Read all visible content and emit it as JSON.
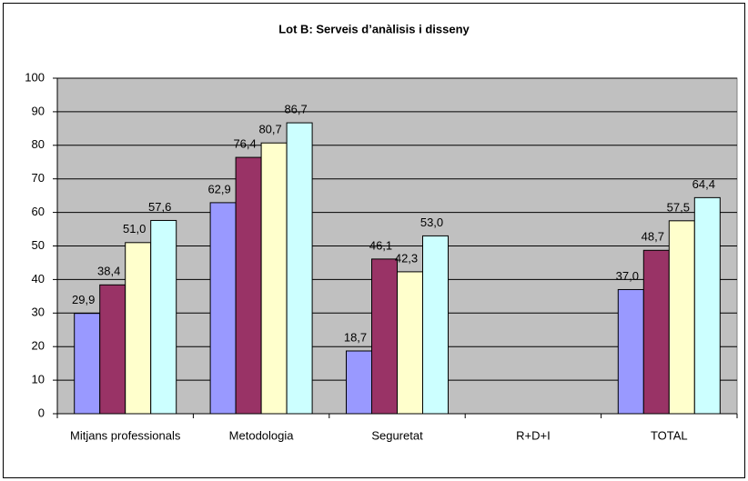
{
  "chart_data": {
    "type": "bar",
    "title": "Lot B: Serveis d’anàlisis i disseny",
    "categories": [
      "Mitjans professionals",
      "Metodologia",
      "Seguretat",
      "R+D+I",
      "TOTAL"
    ],
    "series": [
      {
        "color": "#9999ff",
        "values": [
          29.9,
          62.9,
          18.7,
          null,
          37.0
        ],
        "value_labels": [
          "29,9",
          "62,9",
          "18,7",
          null,
          "37,0"
        ]
      },
      {
        "color": "#993366",
        "values": [
          38.4,
          76.4,
          46.1,
          null,
          48.7
        ],
        "value_labels": [
          "38,4",
          "76,4",
          "46,1",
          null,
          "48,7"
        ]
      },
      {
        "color": "#ffffcc",
        "values": [
          51.0,
          80.7,
          42.3,
          null,
          57.5
        ],
        "value_labels": [
          "51,0",
          "80,7",
          "42,3",
          null,
          "57,5"
        ]
      },
      {
        "color": "#ccffff",
        "values": [
          57.6,
          86.7,
          53.0,
          null,
          64.4
        ],
        "value_labels": [
          "57,6",
          "86,7",
          "53,0",
          null,
          "64,4"
        ]
      }
    ],
    "ylim": [
      0,
      100
    ],
    "yticks": [
      0,
      10,
      20,
      30,
      40,
      50,
      60,
      70,
      80,
      90,
      100
    ],
    "grid": true
  }
}
